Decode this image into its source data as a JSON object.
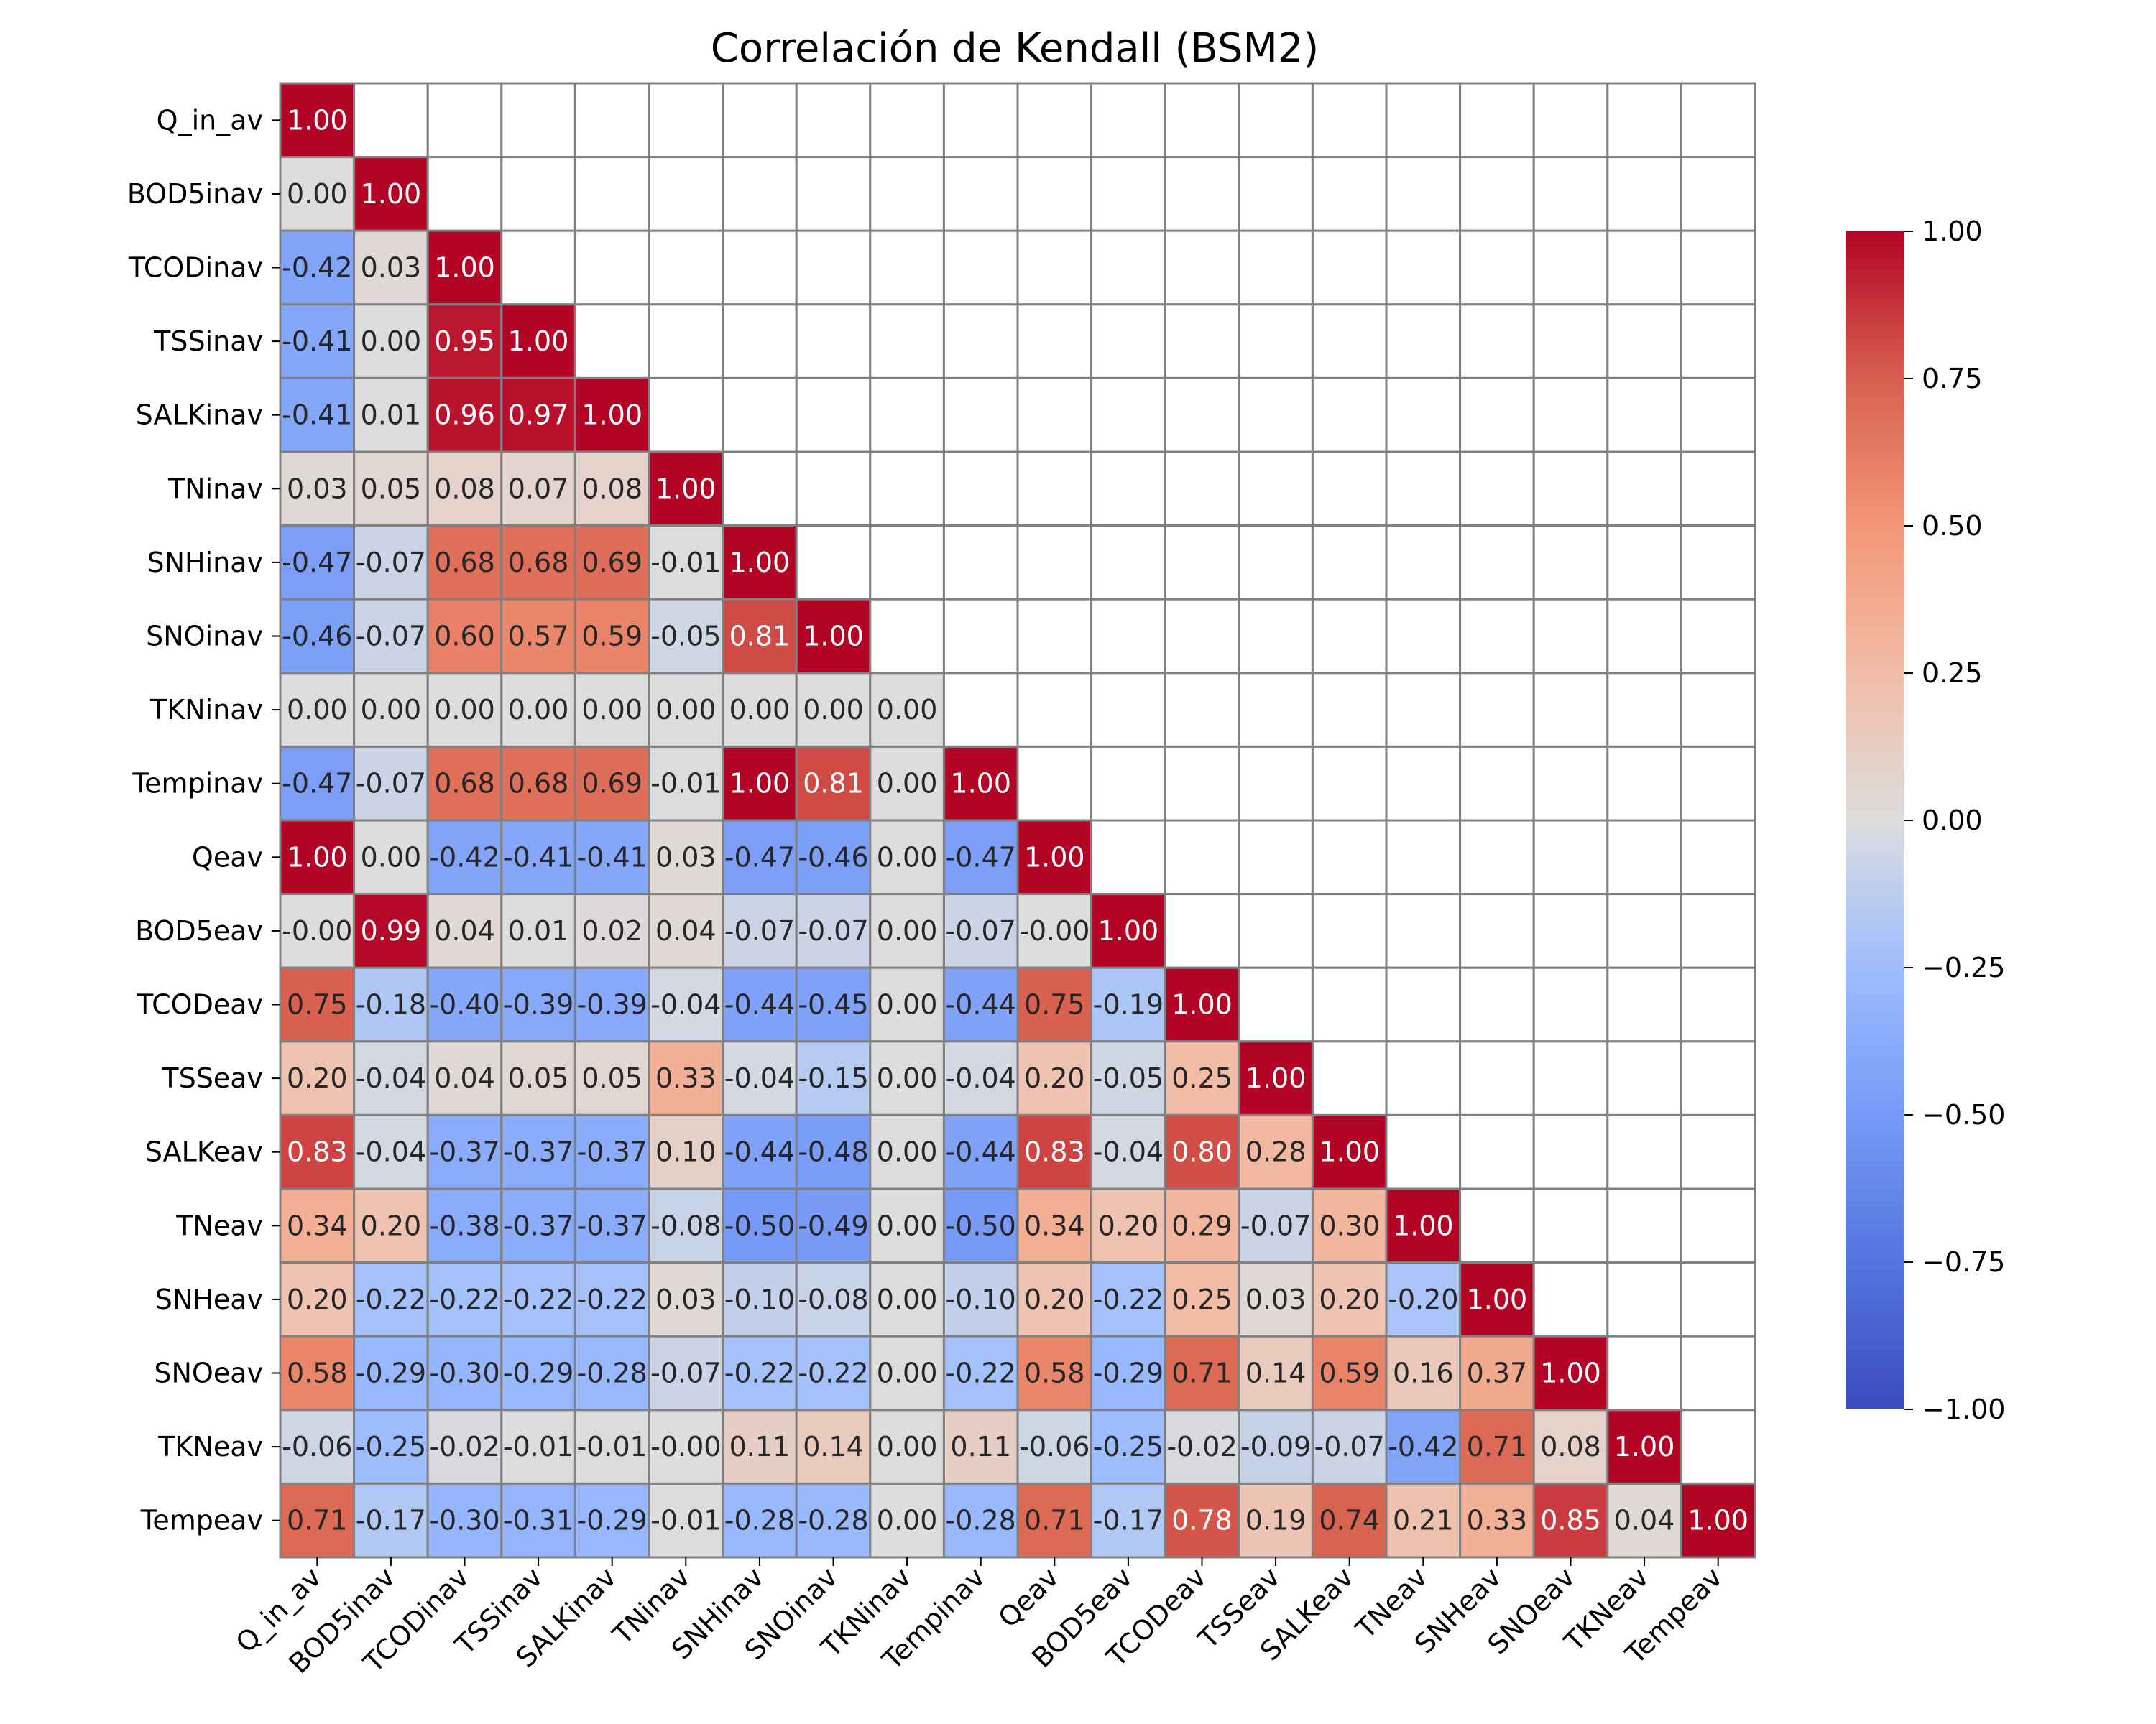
{
  "chart_data": {
    "type": "heatmap",
    "title": "Correlación de Kendall (BSM2)",
    "mask": "upper-triangle",
    "labels": [
      "Q_in_av",
      "BOD5inav",
      "TCODinav",
      "TSSinav",
      "SALKinav",
      "TNinav",
      "SNHinav",
      "SNOinav",
      "TKNinav",
      "Tempinav",
      "Qeav",
      "BOD5eav",
      "TCODeav",
      "TSSeav",
      "SALKeav",
      "TNeav",
      "SNHeav",
      "SNOeav",
      "TKNeav",
      "Tempeav"
    ],
    "rows": [
      {
        "values": [
          1.0
        ],
        "text": [
          "1.00"
        ]
      },
      {
        "values": [
          0.0,
          1.0
        ],
        "text": [
          "0.00",
          "1.00"
        ]
      },
      {
        "values": [
          -0.42,
          0.03,
          1.0
        ],
        "text": [
          "-0.42",
          "0.03",
          "1.00"
        ]
      },
      {
        "values": [
          -0.41,
          0.0,
          0.95,
          1.0
        ],
        "text": [
          "-0.41",
          "0.00",
          "0.95",
          "1.00"
        ]
      },
      {
        "values": [
          -0.41,
          0.01,
          0.96,
          0.97,
          1.0
        ],
        "text": [
          "-0.41",
          "0.01",
          "0.96",
          "0.97",
          "1.00"
        ]
      },
      {
        "values": [
          0.03,
          0.05,
          0.08,
          0.07,
          0.08,
          1.0
        ],
        "text": [
          "0.03",
          "0.05",
          "0.08",
          "0.07",
          "0.08",
          "1.00"
        ]
      },
      {
        "values": [
          -0.47,
          -0.07,
          0.68,
          0.68,
          0.69,
          -0.01,
          1.0
        ],
        "text": [
          "-0.47",
          "-0.07",
          "0.68",
          "0.68",
          "0.69",
          "-0.01",
          "1.00"
        ]
      },
      {
        "values": [
          -0.46,
          -0.07,
          0.6,
          0.57,
          0.59,
          -0.05,
          0.81,
          1.0
        ],
        "text": [
          "-0.46",
          "-0.07",
          "0.60",
          "0.57",
          "0.59",
          "-0.05",
          "0.81",
          "1.00"
        ]
      },
      {
        "values": [
          0.0,
          0.0,
          0.0,
          0.0,
          0.0,
          0.0,
          0.0,
          0.0,
          0.0
        ],
        "text": [
          "0.00",
          "0.00",
          "0.00",
          "0.00",
          "0.00",
          "0.00",
          "0.00",
          "0.00",
          "0.00"
        ]
      },
      {
        "values": [
          -0.47,
          -0.07,
          0.68,
          0.68,
          0.69,
          -0.01,
          1.0,
          0.81,
          0.0,
          1.0
        ],
        "text": [
          "-0.47",
          "-0.07",
          "0.68",
          "0.68",
          "0.69",
          "-0.01",
          "1.00",
          "0.81",
          "0.00",
          "1.00"
        ]
      },
      {
        "values": [
          1.0,
          0.0,
          -0.42,
          -0.41,
          -0.41,
          0.03,
          -0.47,
          -0.46,
          0.0,
          -0.47,
          1.0
        ],
        "text": [
          "1.00",
          "0.00",
          "-0.42",
          "-0.41",
          "-0.41",
          "0.03",
          "-0.47",
          "-0.46",
          "0.00",
          "-0.47",
          "1.00"
        ]
      },
      {
        "values": [
          -0.0,
          0.99,
          0.04,
          0.01,
          0.02,
          0.04,
          -0.07,
          -0.07,
          0.0,
          -0.07,
          -0.0,
          1.0
        ],
        "text": [
          "-0.00",
          "0.99",
          "0.04",
          "0.01",
          "0.02",
          "0.04",
          "-0.07",
          "-0.07",
          "0.00",
          "-0.07",
          "-0.00",
          "1.00"
        ]
      },
      {
        "values": [
          0.75,
          -0.18,
          -0.4,
          -0.39,
          -0.39,
          -0.04,
          -0.44,
          -0.45,
          0.0,
          -0.44,
          0.75,
          -0.19,
          1.0
        ],
        "text": [
          "0.75",
          "-0.18",
          "-0.40",
          "-0.39",
          "-0.39",
          "-0.04",
          "-0.44",
          "-0.45",
          "0.00",
          "-0.44",
          "0.75",
          "-0.19",
          "1.00"
        ]
      },
      {
        "values": [
          0.2,
          -0.04,
          0.04,
          0.05,
          0.05,
          0.33,
          -0.04,
          -0.15,
          0.0,
          -0.04,
          0.2,
          -0.05,
          0.25,
          1.0
        ],
        "text": [
          "0.20",
          "-0.04",
          "0.04",
          "0.05",
          "0.05",
          "0.33",
          "-0.04",
          "-0.15",
          "0.00",
          "-0.04",
          "0.20",
          "-0.05",
          "0.25",
          "1.00"
        ]
      },
      {
        "values": [
          0.83,
          -0.04,
          -0.37,
          -0.37,
          -0.37,
          0.1,
          -0.44,
          -0.48,
          0.0,
          -0.44,
          0.83,
          -0.04,
          0.8,
          0.28,
          1.0
        ],
        "text": [
          "0.83",
          "-0.04",
          "-0.37",
          "-0.37",
          "-0.37",
          "0.10",
          "-0.44",
          "-0.48",
          "0.00",
          "-0.44",
          "0.83",
          "-0.04",
          "0.80",
          "0.28",
          "1.00"
        ]
      },
      {
        "values": [
          0.34,
          0.2,
          -0.38,
          -0.37,
          -0.37,
          -0.08,
          -0.5,
          -0.49,
          0.0,
          -0.5,
          0.34,
          0.2,
          0.29,
          -0.07,
          0.3,
          1.0
        ],
        "text": [
          "0.34",
          "0.20",
          "-0.38",
          "-0.37",
          "-0.37",
          "-0.08",
          "-0.50",
          "-0.49",
          "0.00",
          "-0.50",
          "0.34",
          "0.20",
          "0.29",
          "-0.07",
          "0.30",
          "1.00"
        ]
      },
      {
        "values": [
          0.2,
          -0.22,
          -0.22,
          -0.22,
          -0.22,
          0.03,
          -0.1,
          -0.08,
          0.0,
          -0.1,
          0.2,
          -0.22,
          0.25,
          0.03,
          0.2,
          -0.2,
          1.0
        ],
        "text": [
          "0.20",
          "-0.22",
          "-0.22",
          "-0.22",
          "-0.22",
          "0.03",
          "-0.10",
          "-0.08",
          "0.00",
          "-0.10",
          "0.20",
          "-0.22",
          "0.25",
          "0.03",
          "0.20",
          "-0.20",
          "1.00"
        ]
      },
      {
        "values": [
          0.58,
          -0.29,
          -0.3,
          -0.29,
          -0.28,
          -0.07,
          -0.22,
          -0.22,
          0.0,
          -0.22,
          0.58,
          -0.29,
          0.71,
          0.14,
          0.59,
          0.16,
          0.37,
          1.0
        ],
        "text": [
          "0.58",
          "-0.29",
          "-0.30",
          "-0.29",
          "-0.28",
          "-0.07",
          "-0.22",
          "-0.22",
          "0.00",
          "-0.22",
          "0.58",
          "-0.29",
          "0.71",
          "0.14",
          "0.59",
          "0.16",
          "0.37",
          "1.00"
        ]
      },
      {
        "values": [
          -0.06,
          -0.25,
          -0.02,
          -0.01,
          -0.01,
          -0.0,
          0.11,
          0.14,
          0.0,
          0.11,
          -0.06,
          -0.25,
          -0.02,
          -0.09,
          -0.07,
          -0.42,
          0.71,
          0.08,
          1.0
        ],
        "text": [
          "-0.06",
          "-0.25",
          "-0.02",
          "-0.01",
          "-0.01",
          "-0.00",
          "0.11",
          "0.14",
          "0.00",
          "0.11",
          "-0.06",
          "-0.25",
          "-0.02",
          "-0.09",
          "-0.07",
          "-0.42",
          "0.71",
          "0.08",
          "1.00"
        ]
      },
      {
        "values": [
          0.71,
          -0.17,
          -0.3,
          -0.31,
          -0.29,
          -0.01,
          -0.28,
          -0.28,
          0.0,
          -0.28,
          0.71,
          -0.17,
          0.78,
          0.19,
          0.74,
          0.21,
          0.33,
          0.85,
          0.04,
          1.0
        ],
        "text": [
          "0.71",
          "-0.17",
          "-0.30",
          "-0.31",
          "-0.29",
          "-0.01",
          "-0.28",
          "-0.28",
          "0.00",
          "-0.28",
          "0.71",
          "-0.17",
          "0.78",
          "0.19",
          "0.74",
          "0.21",
          "0.33",
          "0.85",
          "0.04",
          "1.00"
        ]
      }
    ],
    "colorbar": {
      "colormap": "coolwarm",
      "vmin": -1.0,
      "vmax": 1.0,
      "ticks": [
        "1.00",
        "0.75",
        "0.50",
        "0.25",
        "0.00",
        "−0.25",
        "−0.50",
        "−0.75",
        "−1.00"
      ],
      "tick_values": [
        1.0,
        0.75,
        0.5,
        0.25,
        0.0,
        -0.25,
        -0.5,
        -0.75,
        -1.0
      ]
    },
    "xlabel": "",
    "ylabel": ""
  }
}
